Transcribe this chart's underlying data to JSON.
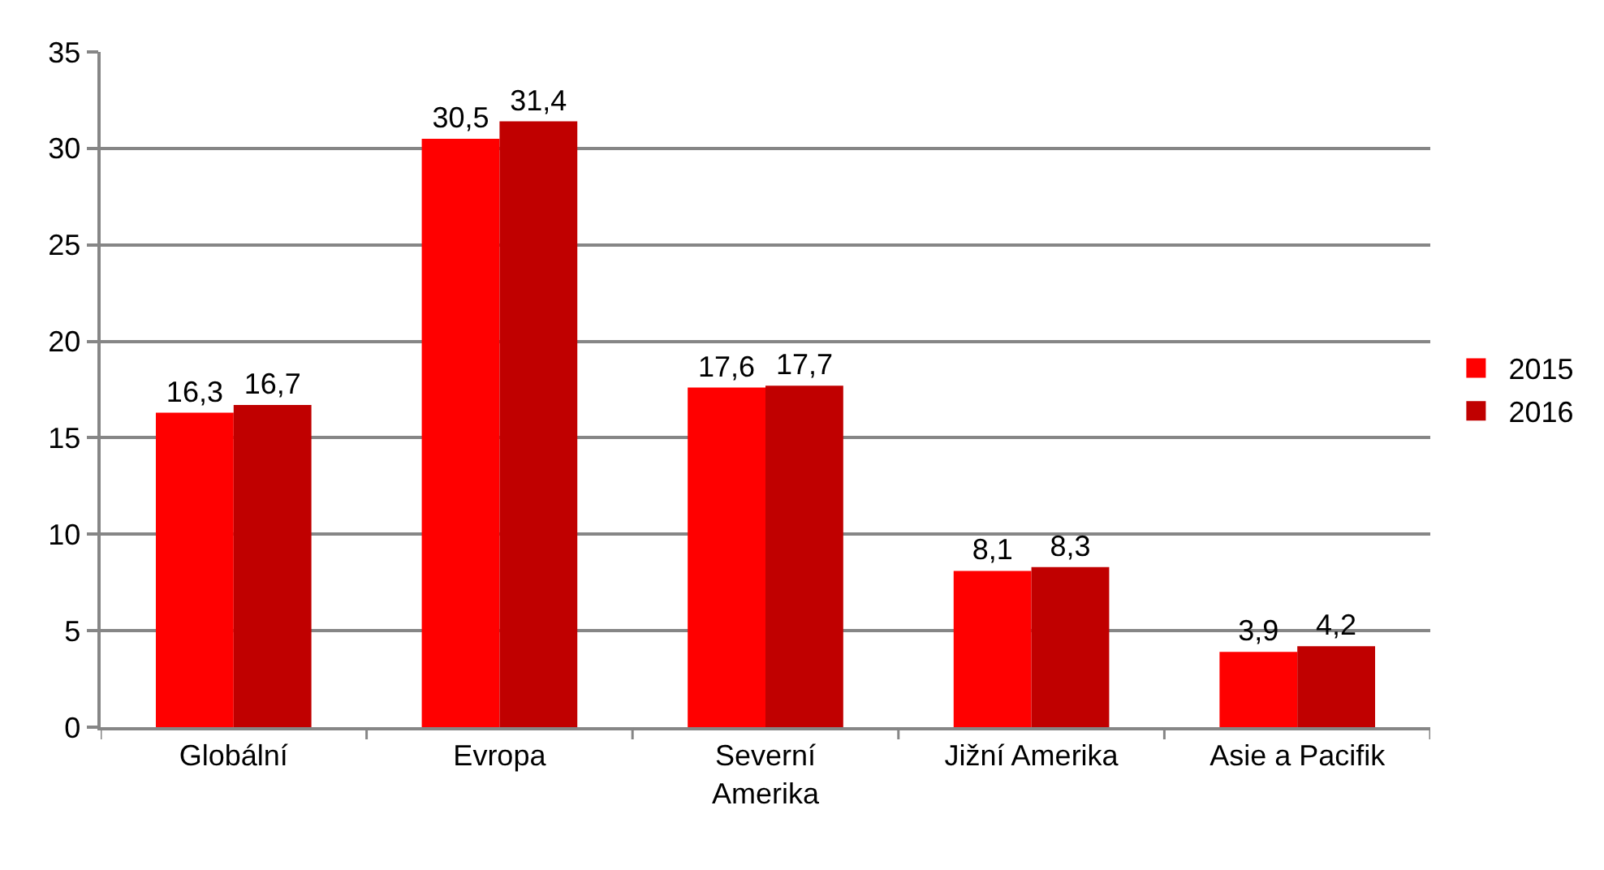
{
  "chart_data": {
    "type": "bar",
    "categories": [
      "Globální",
      "Evropa",
      "Severní Amerika",
      "Jižní Amerika",
      "Asie a Pacifik"
    ],
    "series": [
      {
        "name": "2015",
        "color": "#ff0000",
        "values": [
          16.3,
          30.5,
          17.6,
          8.1,
          3.9
        ],
        "value_labels": [
          "16,3",
          "30,5",
          "17,6",
          "8,1",
          "3,9"
        ]
      },
      {
        "name": "2016",
        "color": "#c00000",
        "values": [
          16.7,
          31.4,
          17.7,
          8.3,
          4.2
        ],
        "value_labels": [
          "16,7",
          "31,4",
          "17,7",
          "8,3",
          "4,2"
        ]
      }
    ],
    "ylim": [
      0,
      35
    ],
    "yticks": [
      0,
      5,
      10,
      15,
      20,
      25,
      30,
      35
    ],
    "grid": "y",
    "legend": "right"
  }
}
